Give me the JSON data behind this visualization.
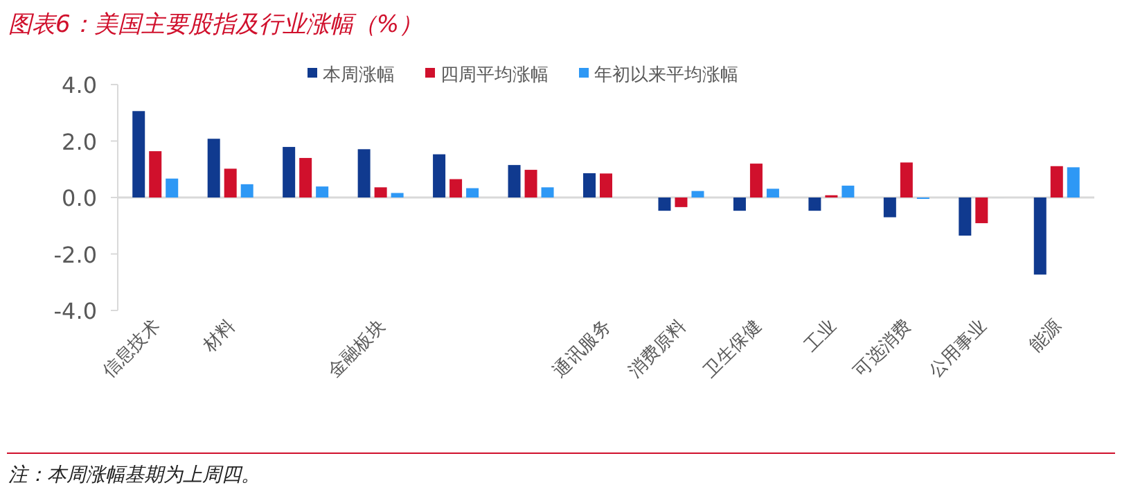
{
  "chart_data": {
    "type": "bar",
    "title": "图表6：美国主要股指及行业涨幅（%）",
    "categories": [
      "信息技术",
      "材料",
      null,
      "金融板块",
      null,
      null,
      "通讯服务",
      "消费原料",
      "卫生保健",
      "工业",
      "可选消费",
      "公用事业",
      "能源"
    ],
    "series": [
      {
        "name": "本周涨幅",
        "color": "#103a8f",
        "values": [
          3.06,
          2.08,
          1.79,
          1.71,
          1.53,
          1.15,
          0.86,
          -0.47,
          -0.47,
          -0.47,
          -0.7,
          -1.35,
          -2.73
        ]
      },
      {
        "name": "四周平均涨幅",
        "color": "#d0102c",
        "values": [
          1.64,
          1.02,
          1.4,
          0.36,
          0.65,
          0.98,
          0.85,
          -0.34,
          1.2,
          0.08,
          1.24,
          -0.91,
          1.11
        ]
      },
      {
        "name": "年初以来平均涨幅",
        "color": "#2e98f5",
        "values": [
          0.67,
          0.47,
          0.39,
          0.16,
          0.33,
          0.36,
          0,
          0.23,
          0.31,
          0.42,
          -0.05,
          0,
          1.07
        ]
      }
    ],
    "ylim": [
      -4,
      4
    ],
    "yticks": [
      {
        "value": -4,
        "label": "-4.0"
      },
      {
        "value": -2,
        "label": "-2.0"
      },
      {
        "value": 0,
        "label": "0.0"
      },
      {
        "value": 2,
        "label": "2.0"
      },
      {
        "value": 4,
        "label": "4.0"
      }
    ],
    "legend": "top",
    "annotations": [
      "注：本周涨幅基期为上周四。"
    ]
  }
}
